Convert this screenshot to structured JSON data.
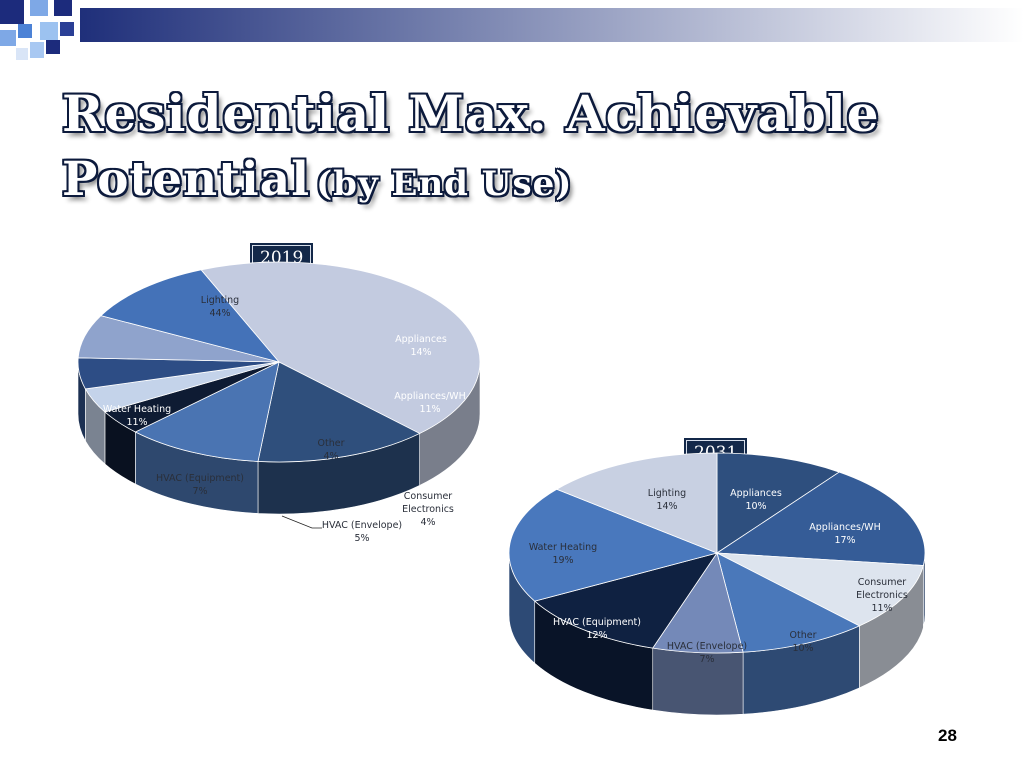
{
  "slide": {
    "title_main": "Residential Max. Achievable",
    "title_line2_main": "Potential",
    "title_line2_sub": "(by End Use)",
    "page_number": "28"
  },
  "colors": {
    "title_text": "#ffffff",
    "title_outline": "#0c1a3c",
    "badge_bg": "#132849",
    "deco_gradient_start": "#1f2f7a",
    "deco_gradient_end": "#ffffff"
  },
  "chart_data": [
    {
      "type": "pie",
      "title": "2019",
      "categories": [
        "Lighting",
        "Appliances",
        "Appliances/WH",
        "Consumer Electronics",
        "Other",
        "HVAC (Envelope)",
        "HVAC (Equipment)",
        "Water Heating"
      ],
      "values": [
        44,
        14,
        11,
        4,
        4,
        5,
        7,
        11
      ],
      "value_labels": [
        "44%",
        "14%",
        "11%",
        "4%",
        "4%",
        "5%",
        "7%",
        "11%"
      ],
      "colors": [
        "#c3cbe0",
        "#2f4f7c",
        "#4a74b2",
        "#0e1b33",
        "#c4d3ea",
        "#2d4d85",
        "#8fa3cc",
        "#4472b8"
      ],
      "legend": "none",
      "style": "3d"
    },
    {
      "type": "pie",
      "title": "2031",
      "categories": [
        "Appliances",
        "Appliances/WH",
        "Consumer Electronics",
        "Other",
        "HVAC (Envelope)",
        "HVAC (Equipment)",
        "Water Heating",
        "Lighting"
      ],
      "values": [
        10,
        17,
        11,
        10,
        7,
        12,
        19,
        14
      ],
      "value_labels": [
        "10%",
        "17%",
        "11%",
        "10%",
        "7%",
        "12%",
        "19%",
        "14%"
      ],
      "colors": [
        "#2e4f7e",
        "#355c97",
        "#dde4ee",
        "#4a78ba",
        "#7489b8",
        "#0f2141",
        "#4978bd",
        "#c8d0e2"
      ],
      "legend": "none",
      "style": "3d"
    }
  ]
}
